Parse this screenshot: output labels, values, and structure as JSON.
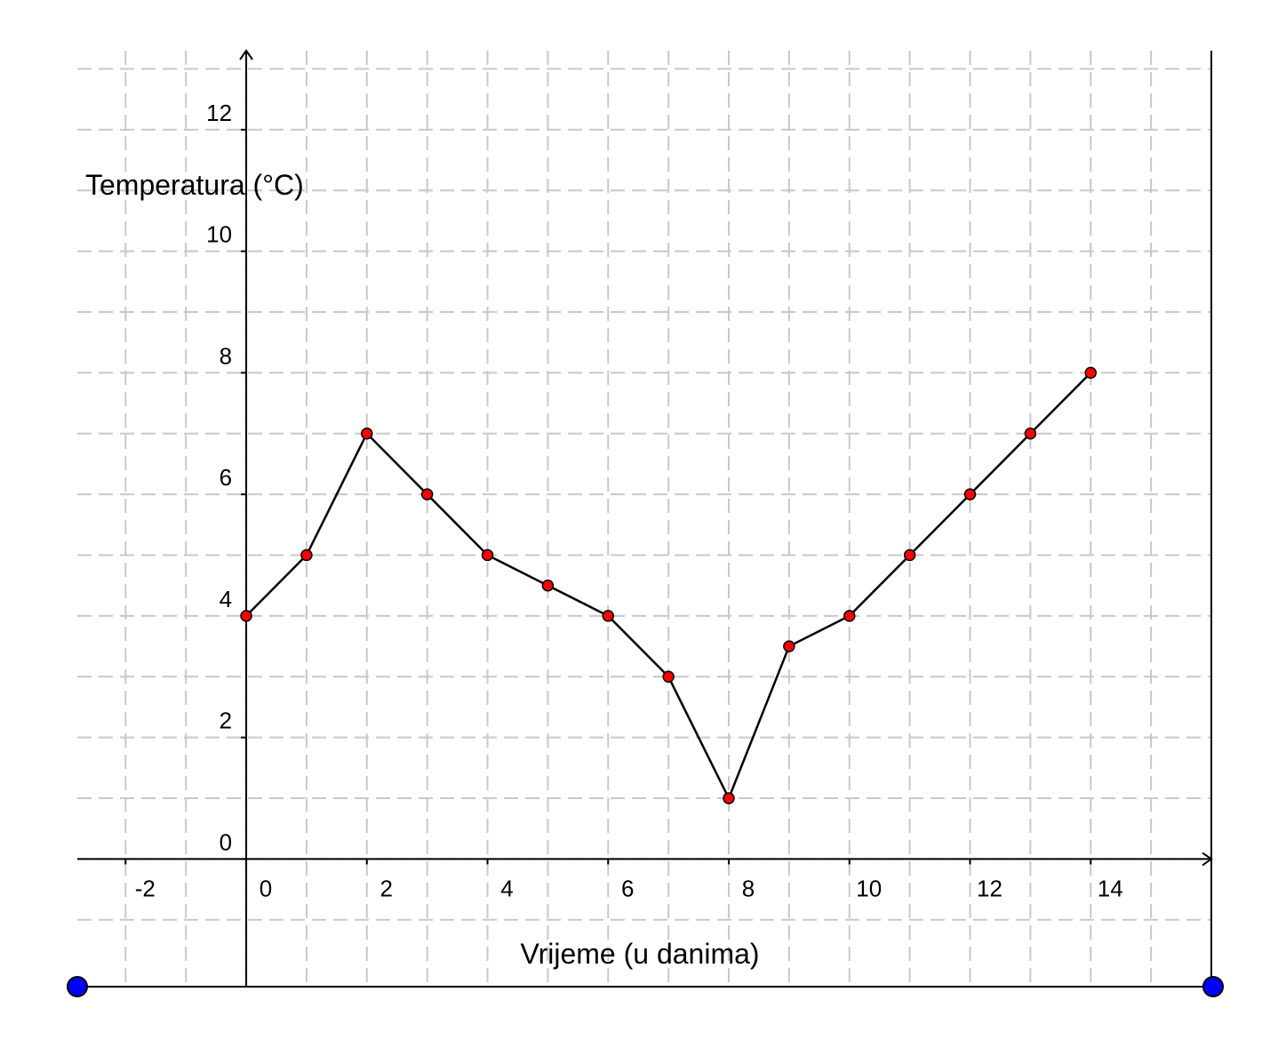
{
  "chart_data": {
    "type": "line",
    "x_label": "Vrijeme (u danima)",
    "y_label": "Temperatura (°C)",
    "x": [
      0,
      1,
      2,
      3,
      4,
      5,
      6,
      7,
      8,
      9,
      10,
      11,
      12,
      13,
      14
    ],
    "series": [
      {
        "color": "#ff0000",
        "values": [
          4,
          5,
          7,
          6,
          5,
          4.5,
          4,
          3,
          1,
          3.5,
          4,
          5,
          6,
          7,
          8
        ]
      }
    ],
    "xlim": [
      -2.8,
      16
    ],
    "ylim": [
      -2.1,
      13.3
    ],
    "xticks": [
      -2,
      0,
      2,
      4,
      6,
      8,
      10,
      12,
      14
    ],
    "yticks": [
      0,
      2,
      4,
      6,
      8,
      10,
      12
    ],
    "xminorticks": [
      -1,
      1,
      3,
      5,
      7,
      9,
      11,
      13,
      15
    ],
    "yminorticks": [
      -1,
      1,
      3,
      5,
      7,
      9,
      11,
      13
    ],
    "grid": true
  }
}
